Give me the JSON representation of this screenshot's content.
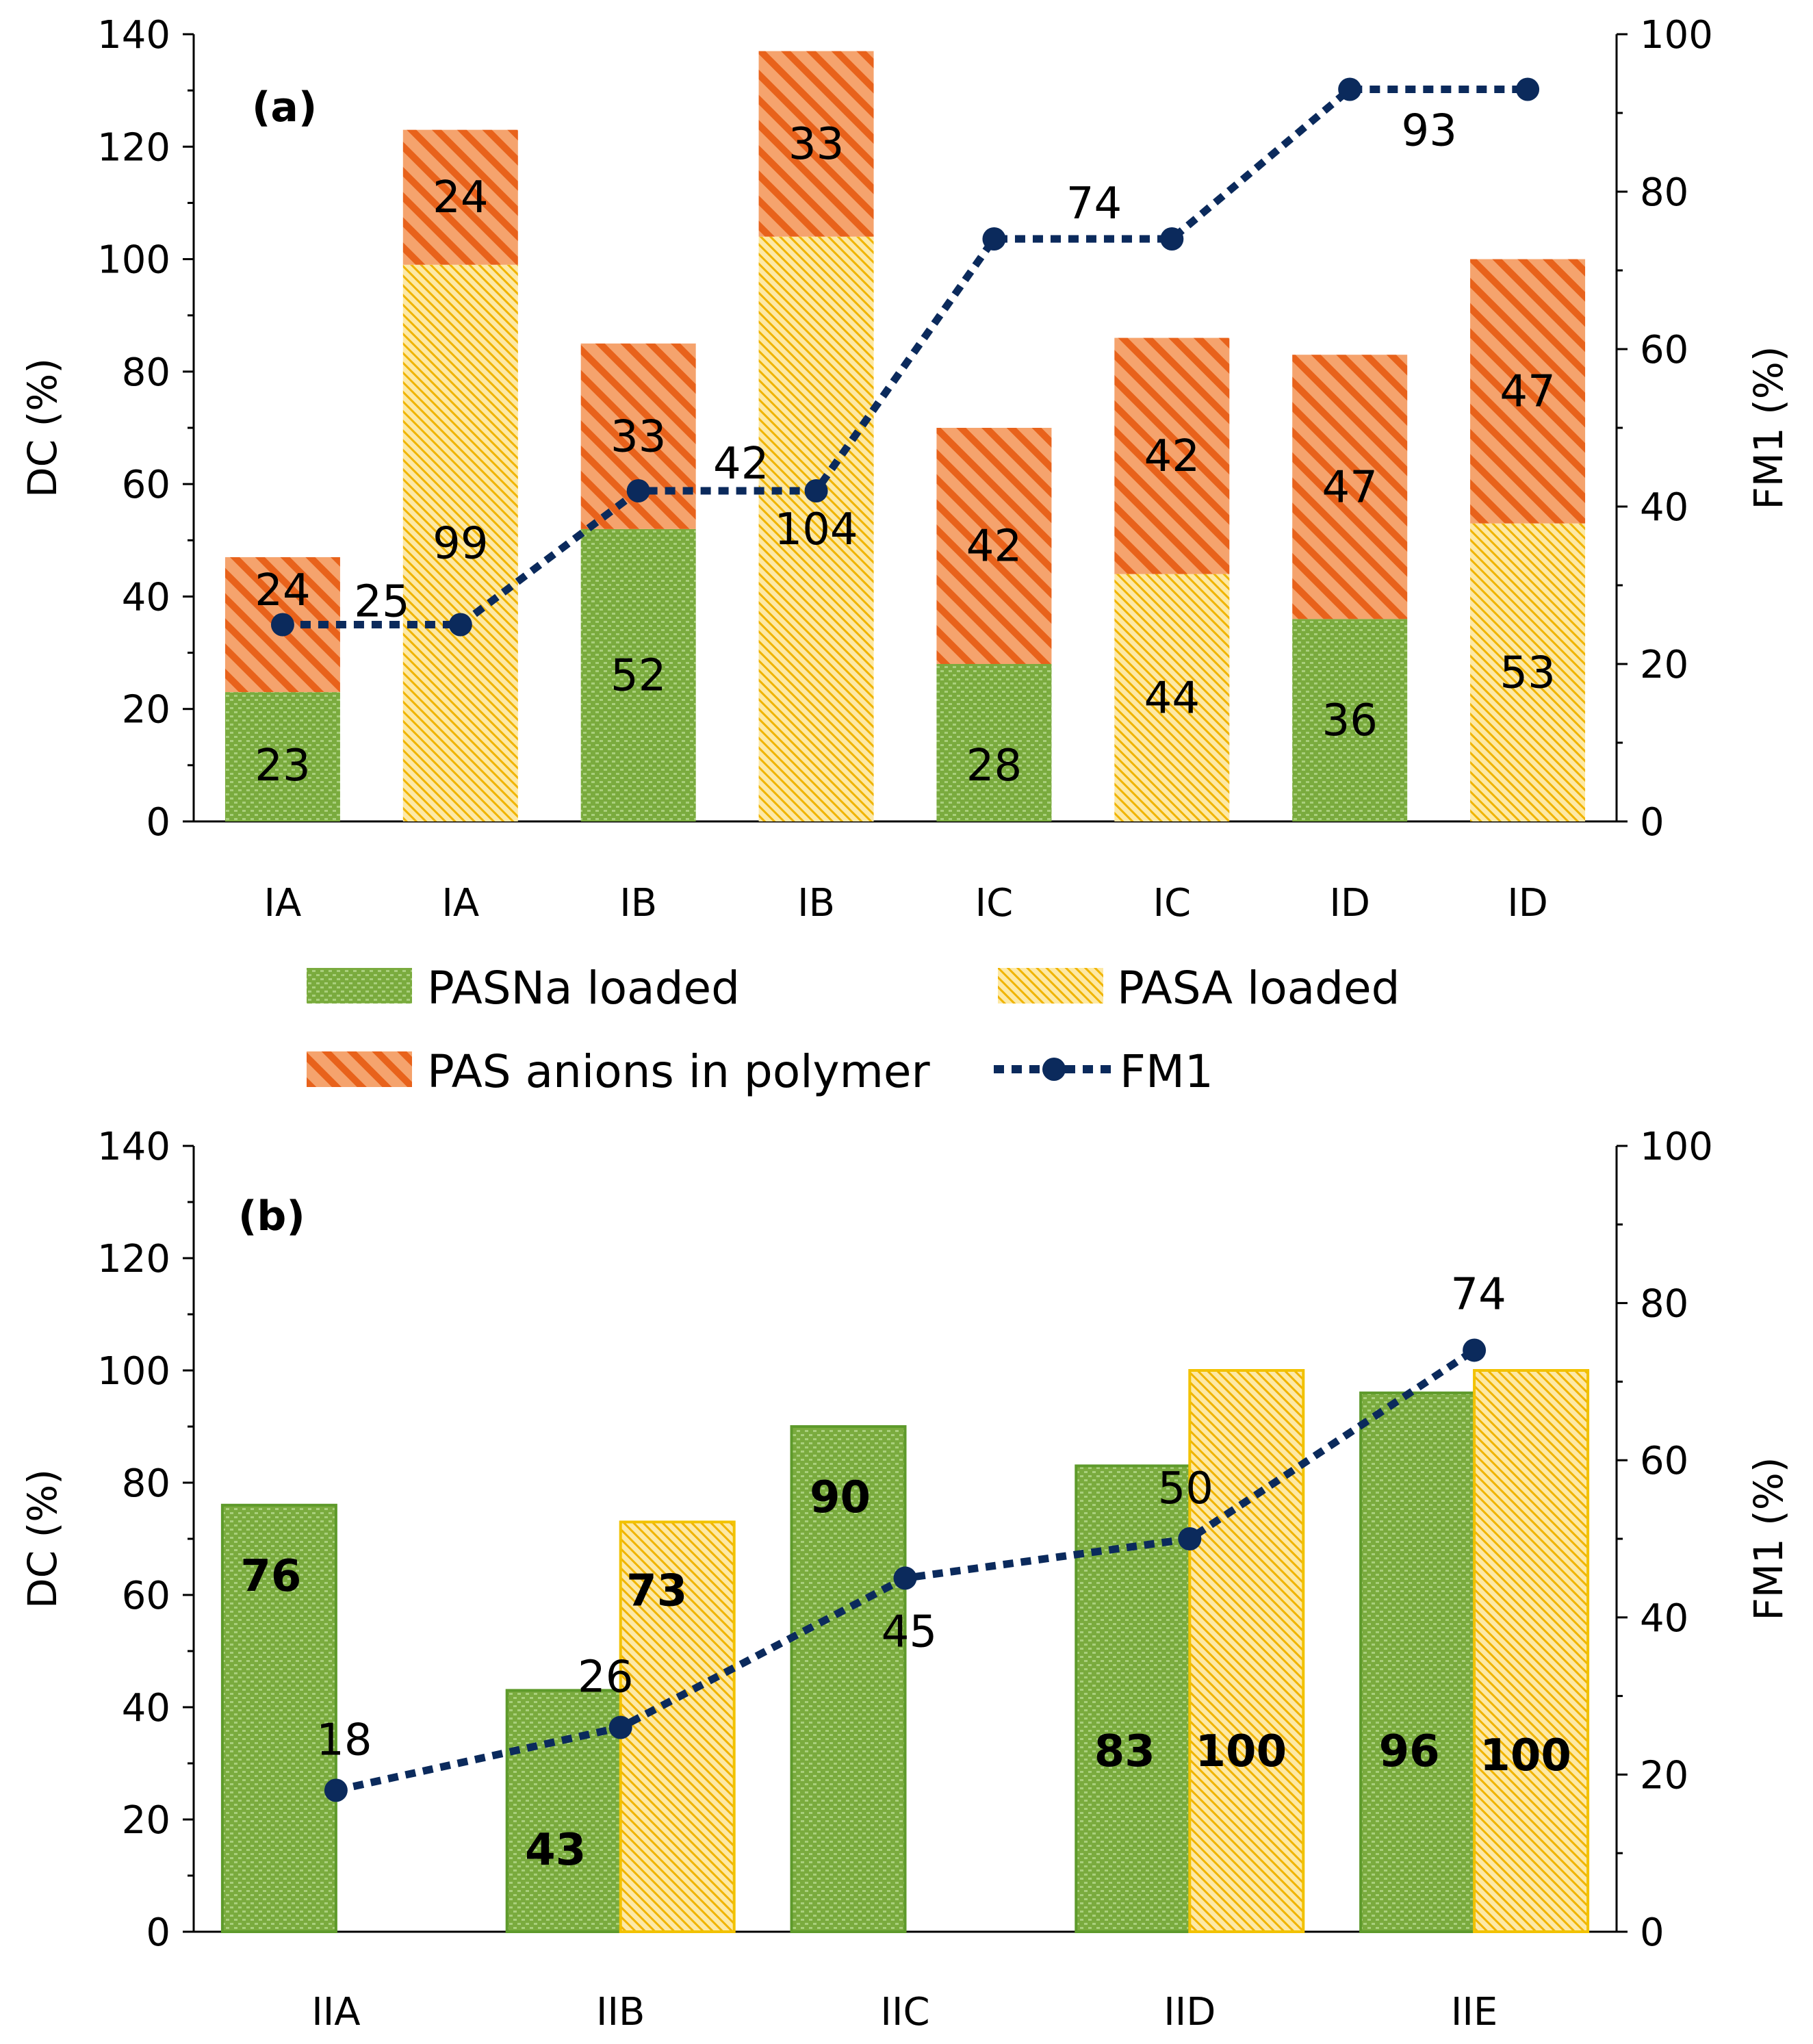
{
  "colors": {
    "pasna_bg": "#7aab3e",
    "pasna_fg": "#a9cf7d",
    "pasna_border": "#5e9a2b",
    "pasa_bg": "#fde9a6",
    "pasa_fg": "#f0b400",
    "pasa_border": "#f2c200",
    "pas_bg": "#f5a36d",
    "pas_fg": "#e8621b",
    "fm1": "#0b2a5c",
    "axis": "#000000"
  },
  "legend": {
    "pasna": "PASNa loaded",
    "pasa": "PASA loaded",
    "pas": "PAS anions in polymer",
    "fm1": "FM1"
  },
  "chart_data": [
    {
      "type": "bar",
      "panel_label": "(a)",
      "ylabel": "DC (%)",
      "y2label": "FM1 (%)",
      "ylim": [
        0,
        140
      ],
      "y2lim": [
        0,
        100
      ],
      "yticks": [
        "0",
        "20",
        "40",
        "60",
        "80",
        "100",
        "120",
        "140"
      ],
      "y2ticks": [
        "0",
        "20",
        "40",
        "60",
        "80",
        "100"
      ],
      "categories": [
        "IA",
        "IA",
        "IB",
        "IB",
        "IC",
        "IC",
        "ID",
        "ID"
      ],
      "bars": [
        {
          "base_type": "pasna",
          "base": 23,
          "base_label": "23",
          "top": 24,
          "top_label": "24"
        },
        {
          "base_type": "pasa",
          "base": 99,
          "base_label": "99",
          "top": 24,
          "top_label": "24"
        },
        {
          "base_type": "pasna",
          "base": 52,
          "base_label": "52",
          "top": 33,
          "top_label": "33"
        },
        {
          "base_type": "pasa",
          "base": 104,
          "base_label": "104",
          "top": 33,
          "top_label": "33"
        },
        {
          "base_type": "pasna",
          "base": 28,
          "base_label": "28",
          "top": 42,
          "top_label": "42"
        },
        {
          "base_type": "pasa",
          "base": 44,
          "base_label": "44",
          "top": 42,
          "top_label": "42"
        },
        {
          "base_type": "pasna",
          "base": 36,
          "base_label": "36",
          "top": 47,
          "top_label": "47"
        },
        {
          "base_type": "pasa",
          "base": 53,
          "base_label": "53",
          "top": 47,
          "top_label": "47"
        }
      ],
      "fm1": [
        25,
        25,
        42,
        42,
        74,
        74,
        93,
        93
      ],
      "fm1_labels": [
        {
          "index": 0,
          "text": "25"
        },
        {
          "index": 2,
          "text": "42"
        },
        {
          "index": 4,
          "text": "74"
        },
        {
          "index": 6,
          "text": "93"
        }
      ]
    },
    {
      "type": "bar",
      "panel_label": "(b)",
      "ylabel": "DC (%)",
      "y2label": "FM1 (%)",
      "ylim": [
        0,
        140
      ],
      "y2lim": [
        0,
        100
      ],
      "yticks": [
        "0",
        "20",
        "40",
        "60",
        "80",
        "100",
        "120",
        "140"
      ],
      "y2ticks": [
        "0",
        "20",
        "40",
        "60",
        "80",
        "100"
      ],
      "categories": [
        "IIA",
        "IIB",
        "IIC",
        "IID",
        "IIE"
      ],
      "series": [
        {
          "name": "PASNa loaded",
          "values": [
            76,
            43,
            90,
            83,
            96
          ],
          "labels": [
            "76",
            "43",
            "90",
            "83",
            "96"
          ]
        },
        {
          "name": "PASA loaded",
          "values": [
            null,
            73,
            null,
            100,
            100
          ],
          "labels": [
            "",
            "73",
            "",
            "100",
            "100"
          ]
        }
      ],
      "fm1": [
        18,
        26,
        45,
        50,
        74
      ],
      "fm1_labels": [
        "18",
        "26",
        "45",
        "50",
        "74"
      ]
    }
  ]
}
